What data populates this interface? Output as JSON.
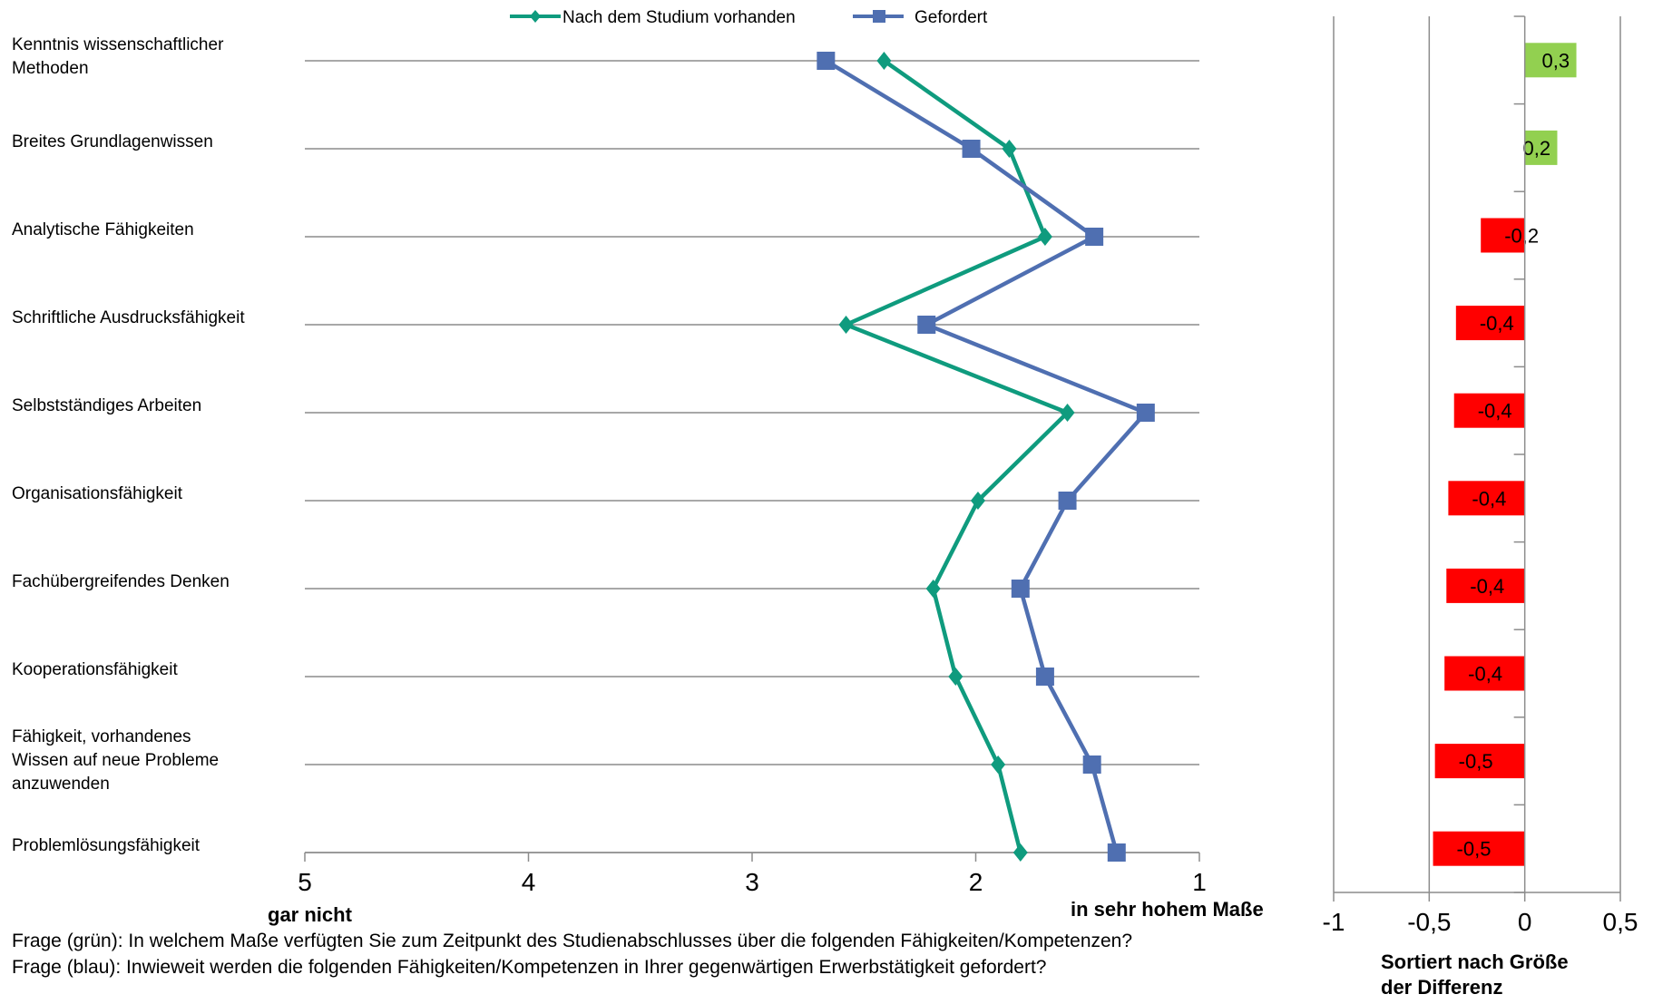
{
  "chart_data": [
    {
      "type": "line",
      "orientation": "horizontal-value-axis",
      "categories": [
        "Kenntnis wissenschaftlicher Methoden",
        "Breites Grundlagenwissen",
        "Analytische Fähigkeiten",
        "Schriftliche Ausdrucksfähigkeit",
        "Selbstständiges Arbeiten",
        "Organisationsfähigkeit",
        "Fachübergreifendes Denken",
        "Kooperationsfähigkeit",
        "Fähigkeit, vorhandenes Wissen auf neue Probleme anzuwenden",
        "Problemlösungsfähigkeit"
      ],
      "category_lines": [
        [
          "Kenntnis  wissenschaftlicher",
          "Methoden"
        ],
        [
          "Breites  Grundlagenwissen"
        ],
        [
          "Analytische  Fähigkeiten"
        ],
        [
          "Schriftliche Ausdrucksfähigkeit"
        ],
        [
          "Selbstständiges  Arbeiten"
        ],
        [
          "Organisationsfähigkeit"
        ],
        [
          "Fachübergreifendes  Denken"
        ],
        [
          "Kooperationsfähigkeit"
        ],
        [
          "Fähigkeit,  vorhandenes",
          "Wissen auf neue Probleme",
          "anzuwenden"
        ],
        [
          "Problemlösungsfähigkeit"
        ]
      ],
      "series": [
        {
          "name": "Nach dem Studium vorhanden",
          "color": "#0f9b7e",
          "marker": "diamond",
          "values": [
            2.41,
            1.85,
            1.69,
            2.58,
            1.59,
            1.99,
            2.19,
            2.09,
            1.9,
            1.8
          ]
        },
        {
          "name": "Gefordert",
          "color": "#4f6fb1",
          "marker": "square",
          "values": [
            2.67,
            2.02,
            1.47,
            2.22,
            1.24,
            1.59,
            1.8,
            1.69,
            1.48,
            1.37
          ]
        }
      ],
      "xlim": [
        5,
        1
      ],
      "xticks": [
        "5",
        "4",
        "3",
        "2",
        "1"
      ],
      "xlabel_left": "gar nicht",
      "xlabel_right": "in sehr hohem Maße",
      "grid": true,
      "legend": "top"
    },
    {
      "type": "bar",
      "orientation": "horizontal",
      "values": [
        0.3,
        0.2,
        -0.2,
        -0.4,
        -0.4,
        -0.4,
        -0.4,
        -0.4,
        -0.5,
        -0.5
      ],
      "bar_values": [
        0.27,
        0.17,
        -0.23,
        -0.36,
        -0.37,
        -0.4,
        -0.41,
        -0.42,
        -0.47,
        -0.48
      ],
      "labels": [
        "0,3",
        "0,2",
        "-0,2",
        "-0,4",
        "-0,4",
        "-0,4",
        "-0,4",
        "-0,4",
        "-0,5",
        "-0,5"
      ],
      "positive_color": "#92d050",
      "negative_color": "#ff0000",
      "xlim": [
        -1,
        0.5
      ],
      "xticks": [
        "-1",
        "-0,5",
        "0",
        "0,5"
      ],
      "xlabel": [
        "Sortiert nach Größe",
        "der Differenz"
      ],
      "grid": true
    }
  ],
  "questions": [
    "Frage (grün): In welchem Maße verfügten Sie zum Zeitpunkt des Studienabschlusses über die folgenden Fähigkeiten/Kompetenzen?",
    "Frage (blau): Inwieweit werden die folgenden Fähigkeiten/Kompetenzen in Ihrer gegenwärtigen Erwerbstätigkeit gefordert?"
  ]
}
